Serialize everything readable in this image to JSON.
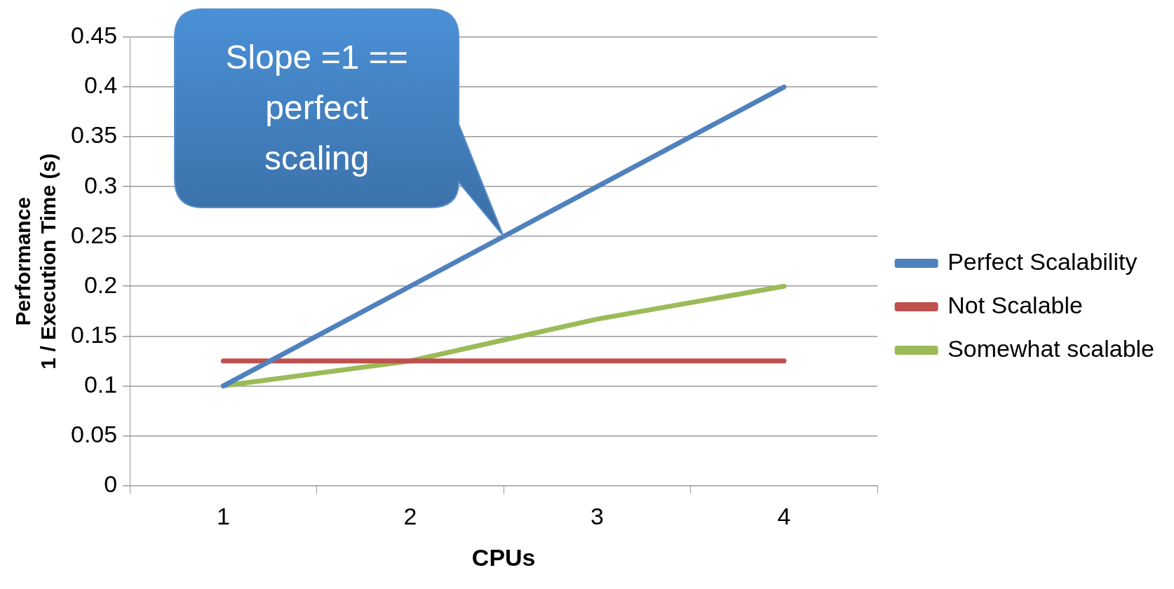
{
  "chart_data": {
    "type": "line",
    "xlabel": "CPUs",
    "ylabel": "Performance\n1 / Execution Time (s)",
    "categories": [
      "1",
      "2",
      "3",
      "4"
    ],
    "series": [
      {
        "name": "Perfect Scalability",
        "color": "#4f81bd",
        "values": [
          0.1,
          0.2,
          0.3,
          0.4
        ]
      },
      {
        "name": "Not Scalable",
        "color": "#c0504d",
        "values": [
          0.125,
          0.125,
          0.125,
          0.125
        ]
      },
      {
        "name": "Somewhat scalable",
        "color": "#9bbb59",
        "values": [
          0.1,
          0.125,
          0.167,
          0.2
        ]
      }
    ],
    "ylim": [
      0,
      0.45
    ],
    "yticks": [
      0,
      0.05,
      0.1,
      0.15,
      0.2,
      0.25,
      0.3,
      0.35,
      0.4,
      0.45
    ],
    "grid": "y",
    "legend": "right",
    "marker": "none",
    "line_style": "solid",
    "annotations": [
      "Slope =1 == perfect scaling"
    ]
  }
}
